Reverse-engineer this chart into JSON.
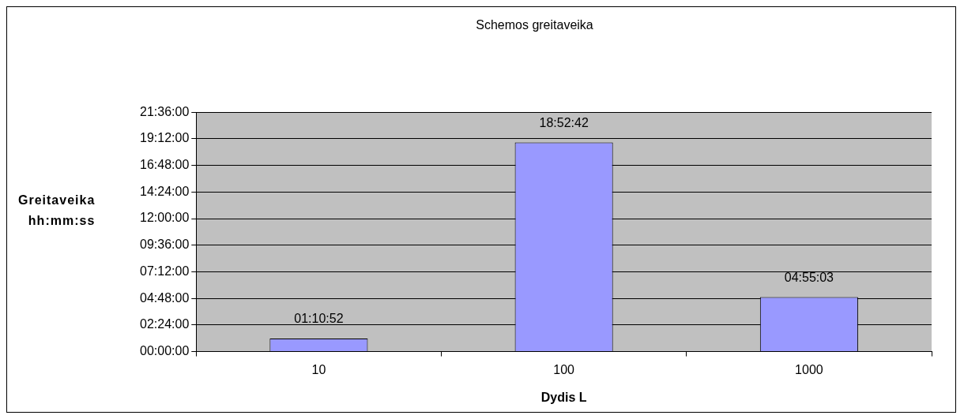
{
  "chart_data": {
    "type": "bar",
    "title": "Schemos greitaveika",
    "xlabel": "Dydis L",
    "ylabel": "Greitaveika\nhh:mm:ss",
    "categories": [
      "10",
      "100",
      "1000"
    ],
    "series": [
      {
        "color": "#9999ff",
        "values": [
          1.18111,
          18.87833,
          4.9175
        ],
        "value_labels": [
          "01:10:52",
          "18:52:42",
          "04:55:03"
        ]
      }
    ],
    "ylim": [
      0,
      21.6
    ],
    "yticks": [
      {
        "value": 0,
        "label": "00:00:00"
      },
      {
        "value": 2.4,
        "label": "02:24:00"
      },
      {
        "value": 4.8,
        "label": "04:48:00"
      },
      {
        "value": 7.2,
        "label": "07:12:00"
      },
      {
        "value": 9.6,
        "label": "09:36:00"
      },
      {
        "value": 12,
        "label": "12:00:00"
      },
      {
        "value": 14.4,
        "label": "14:24:00"
      },
      {
        "value": 16.8,
        "label": "16:48:00"
      },
      {
        "value": 19.2,
        "label": "19:12:00"
      },
      {
        "value": 21.6,
        "label": "21:36:00"
      }
    ],
    "grid": "y",
    "legend": false
  }
}
